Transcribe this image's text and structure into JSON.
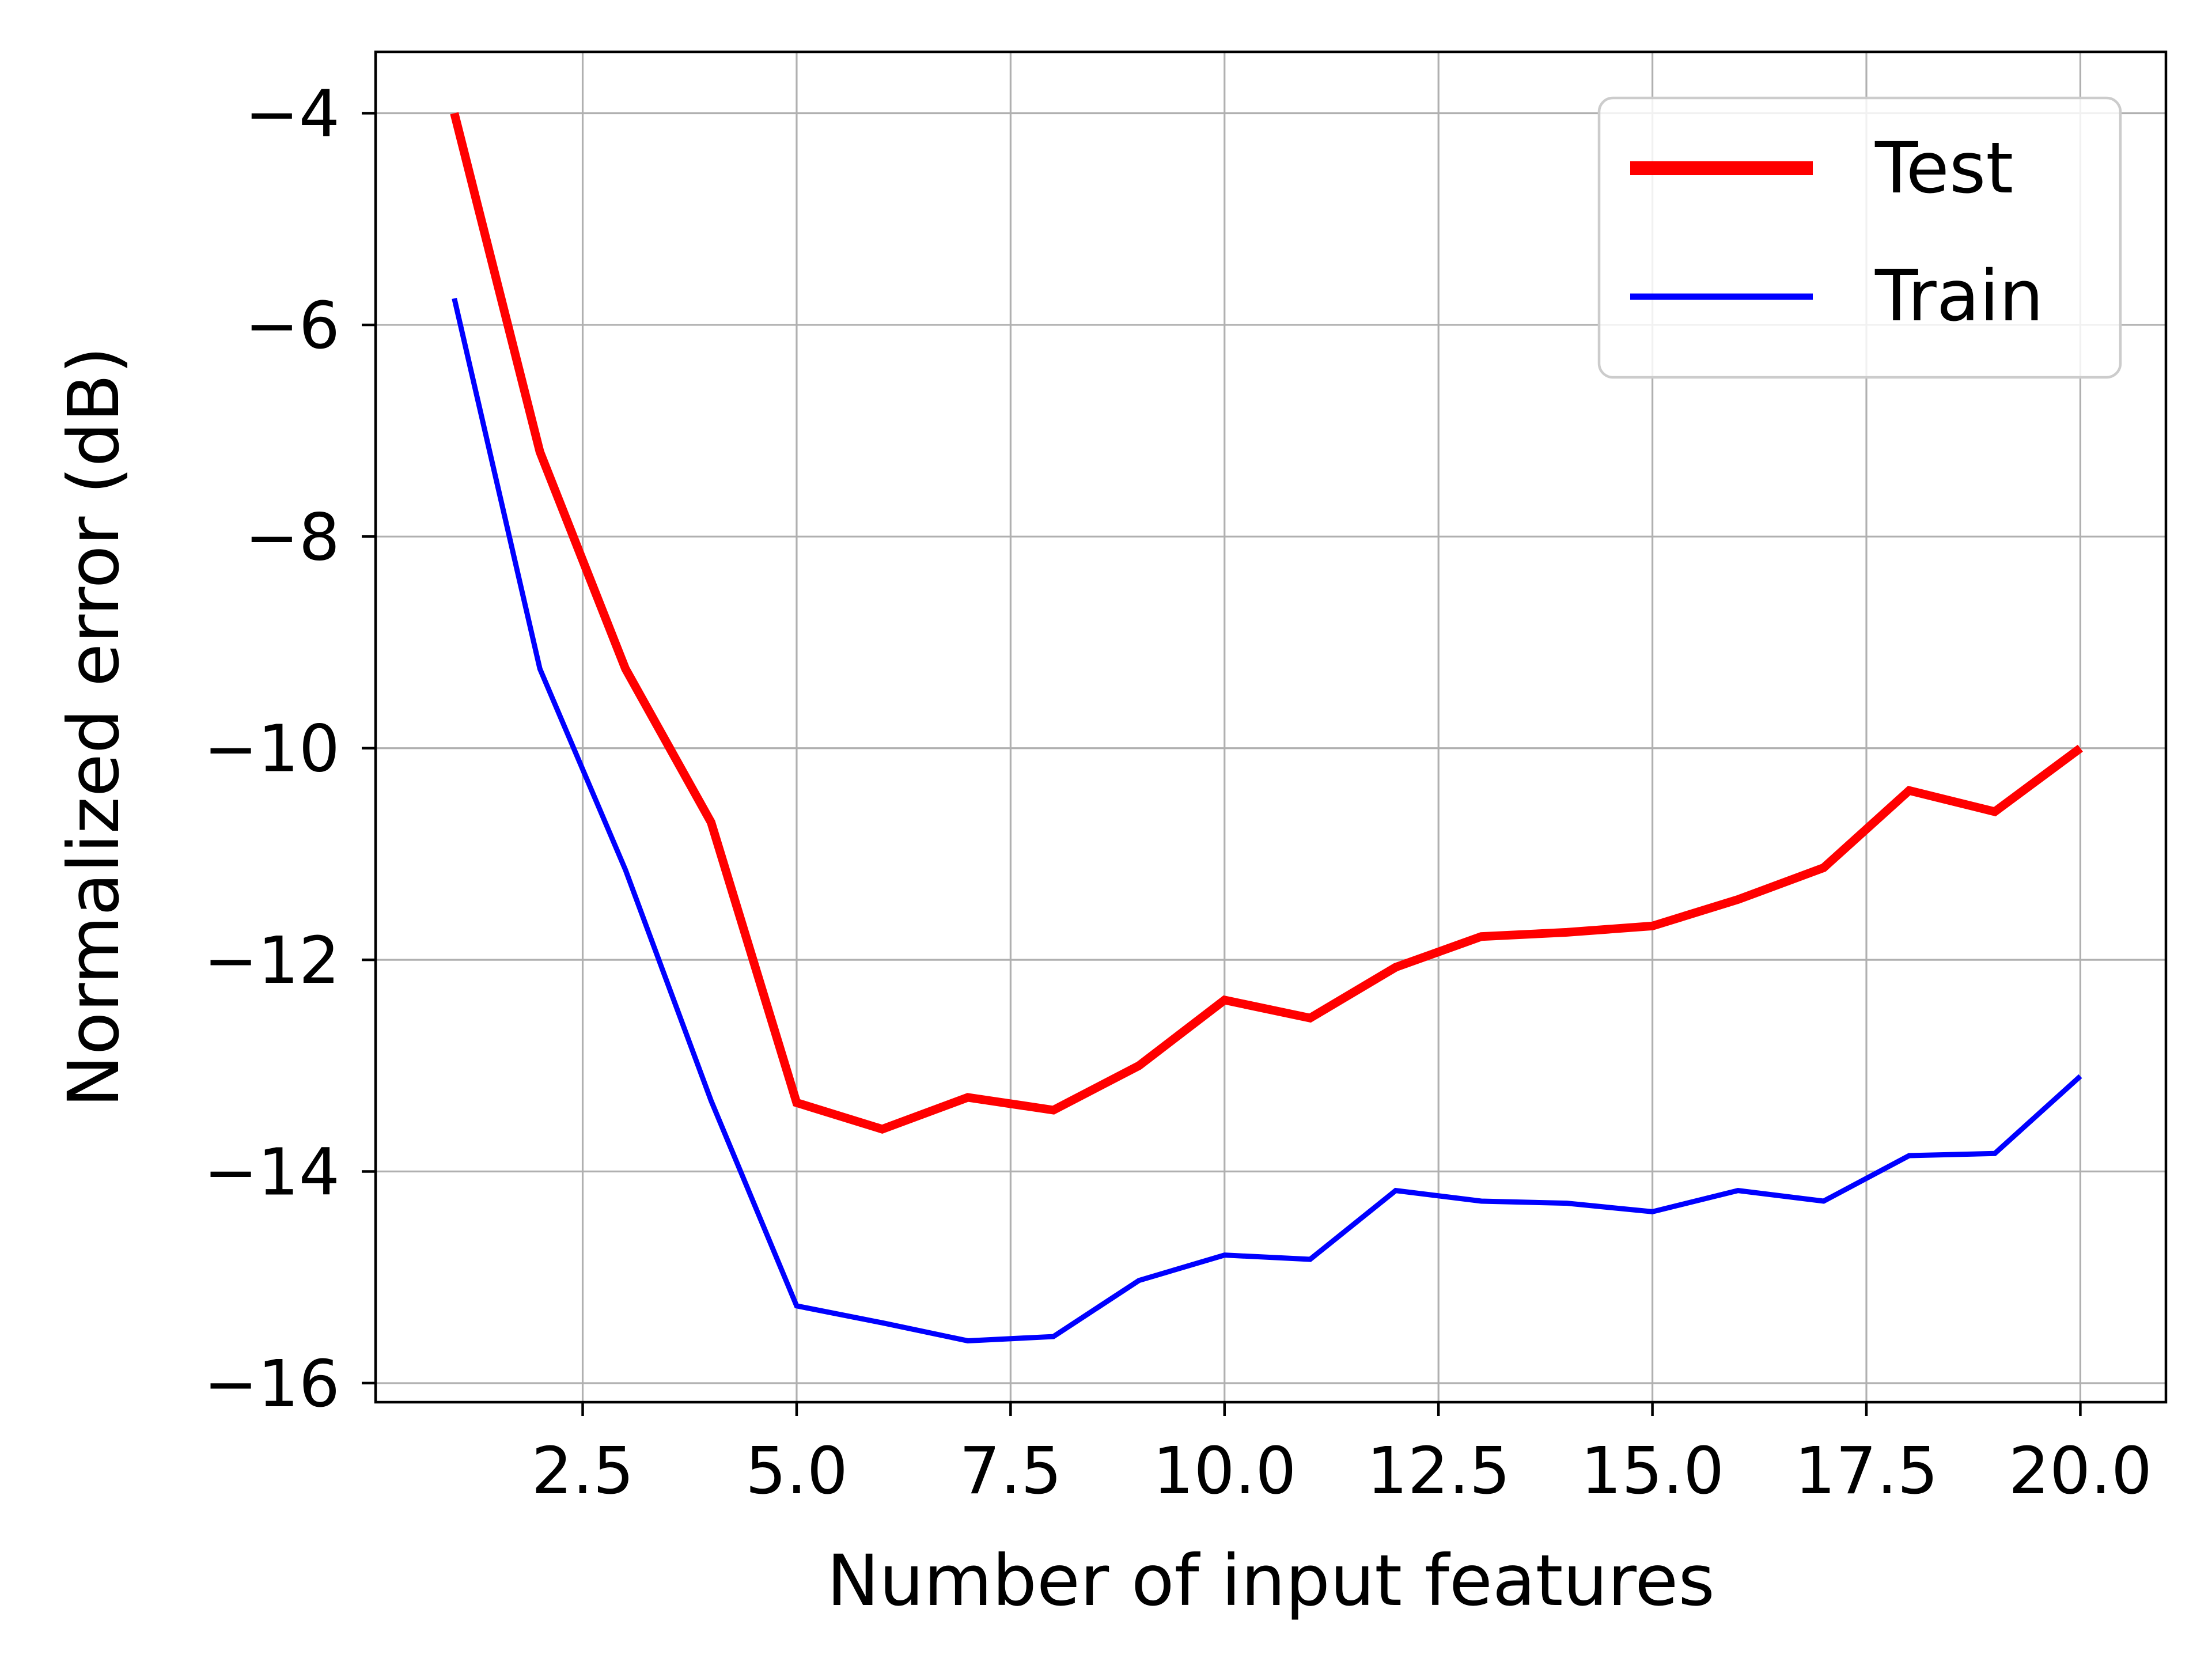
{
  "chart_data": {
    "type": "line",
    "title": "",
    "xlabel": "Number of input features",
    "ylabel": "Normalized error (dB)",
    "xlim": [
      0.08,
      21.0
    ],
    "ylim": [
      -16.18,
      -3.42
    ],
    "xticks": [
      2.5,
      5.0,
      7.5,
      10.0,
      12.5,
      15.0,
      17.5,
      20.0
    ],
    "xtick_labels": [
      "2.5",
      "5.0",
      "7.5",
      "10.0",
      "12.5",
      "15.0",
      "17.5",
      "20.0"
    ],
    "yticks": [
      -4,
      -6,
      -8,
      -10,
      -12,
      -14,
      -16
    ],
    "ytick_labels": [
      "−4",
      "−6",
      "−8",
      "−10",
      "−12",
      "−14",
      "−16"
    ],
    "grid": true,
    "legend_position": "top-right",
    "x": [
      1,
      2,
      3,
      4,
      5,
      6,
      7,
      8,
      9,
      10,
      11,
      12,
      13,
      14,
      15,
      16,
      17,
      18,
      19,
      20
    ],
    "series": [
      {
        "name": "Test",
        "color": "#ff0000",
        "values": [
          -4.0,
          -7.2,
          -9.25,
          -10.7,
          -13.35,
          -13.6,
          -13.3,
          -13.42,
          -13.0,
          -12.38,
          -12.55,
          -12.07,
          -11.78,
          -11.74,
          -11.68,
          -11.43,
          -11.13,
          -10.4,
          -10.6,
          -10.0
        ]
      },
      {
        "name": "Train",
        "color": "#0000ff",
        "values": [
          -5.75,
          -9.25,
          -11.15,
          -13.33,
          -15.27,
          -15.43,
          -15.6,
          -15.56,
          -15.03,
          -14.79,
          -14.83,
          -14.18,
          -14.28,
          -14.3,
          -14.38,
          -14.18,
          -14.28,
          -13.85,
          -13.83,
          -13.1
        ]
      }
    ]
  }
}
